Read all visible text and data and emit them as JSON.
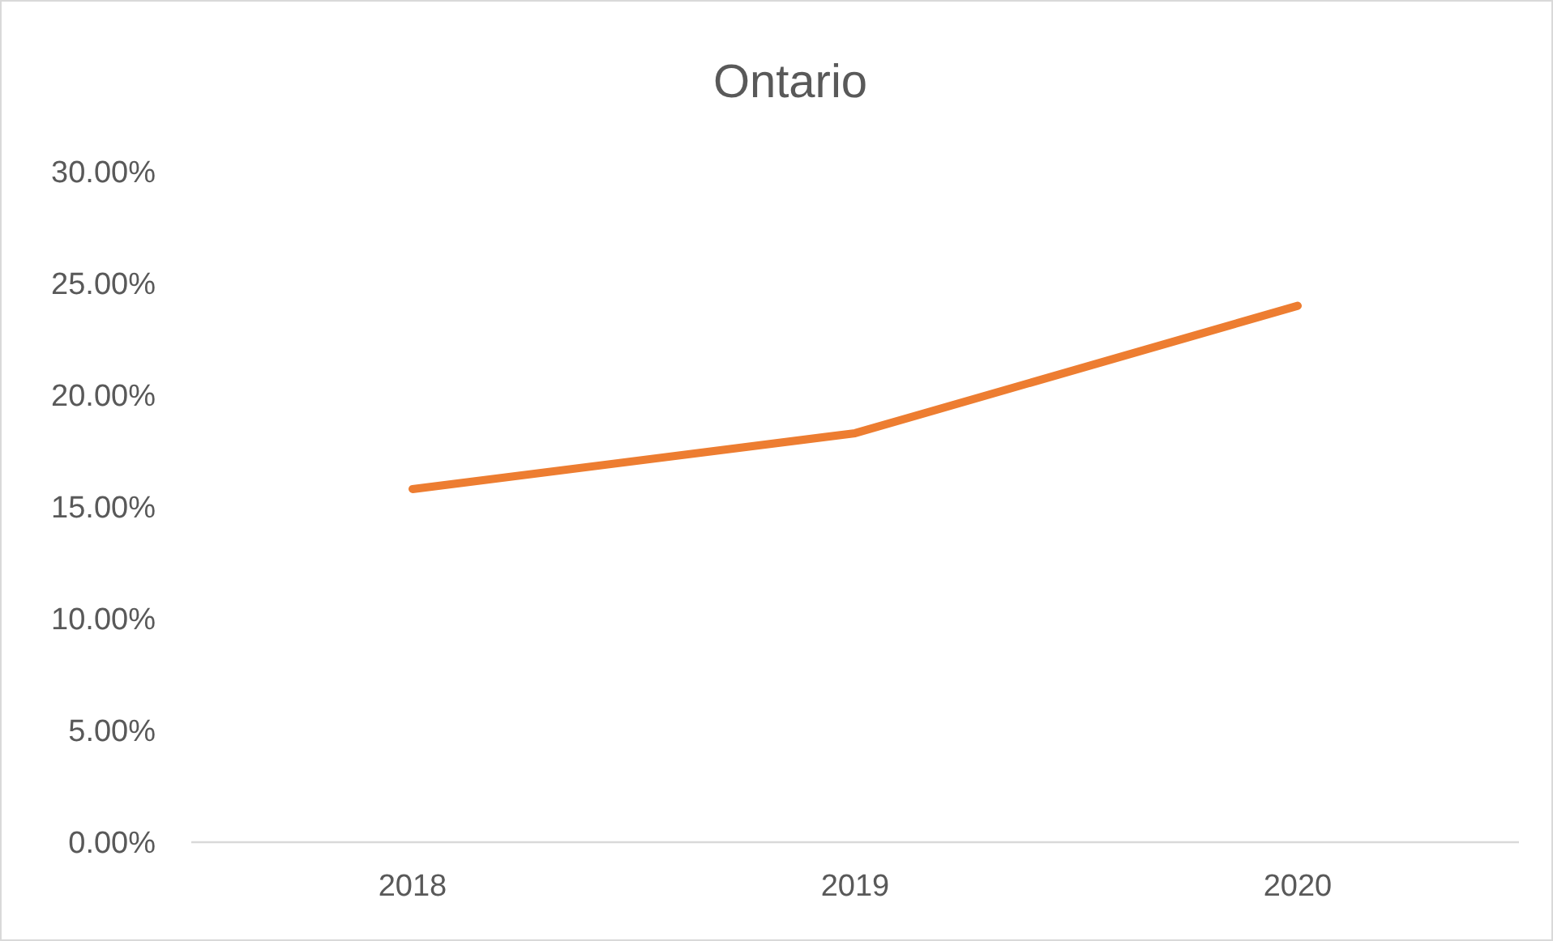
{
  "chart_data": {
    "type": "line",
    "title": "Ontario",
    "categories": [
      "2018",
      "2019",
      "2020"
    ],
    "series": [
      {
        "color": "#ed7d31",
        "values": [
          15.8,
          18.3,
          24.0
        ]
      }
    ],
    "ylim": [
      0,
      30
    ],
    "yticks": [
      {
        "value": 0,
        "label": "0.00%"
      },
      {
        "value": 5,
        "label": "5.00%"
      },
      {
        "value": 10,
        "label": "10.00%"
      },
      {
        "value": 15,
        "label": "15.00%"
      },
      {
        "value": 20,
        "label": "20.00%"
      },
      {
        "value": 25,
        "label": "25.00%"
      },
      {
        "value": 30,
        "label": "30.00%"
      }
    ]
  }
}
